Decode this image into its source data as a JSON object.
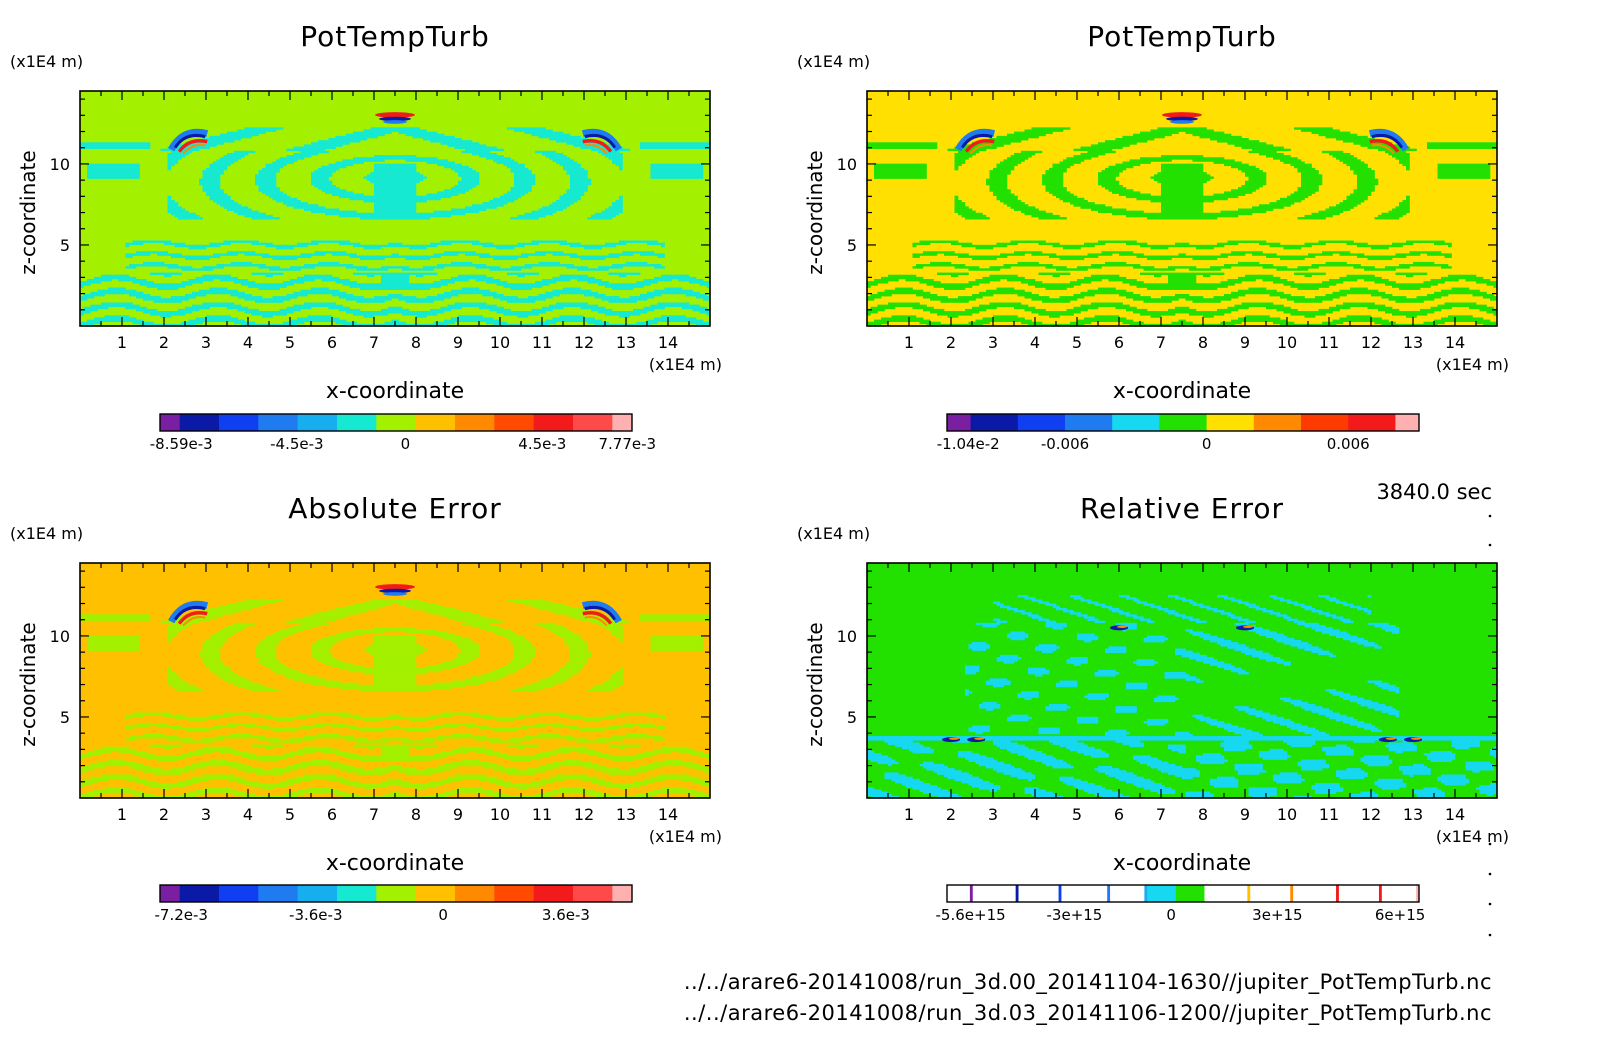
{
  "time_label": "3840.0 sec",
  "footer": {
    "line1": "../../arare6-20141008/run_3d.00_20141104-1630//jupiter_PotTempTurb.nc",
    "line2": "../../arare6-20141008/run_3d.03_20141106-1200//jupiter_PotTempTurb.nc"
  },
  "chart_data": [
    {
      "type": "heatmap",
      "title": "PotTempTurb",
      "xlabel": "x-coordinate",
      "ylabel": "z-coordinate",
      "x_unit": "(x1E4 m)",
      "y_unit": "(x1E4 m)",
      "xlim": [
        0,
        15
      ],
      "ylim": [
        0,
        14.5
      ],
      "x_ticks": [
        "1",
        "2",
        "3",
        "4",
        "5",
        "6",
        "7",
        "8",
        "9",
        "10",
        "11",
        "12",
        "13",
        "14"
      ],
      "y_ticks": [
        "5",
        "10"
      ],
      "field": "base",
      "colorbar": {
        "colors": [
          "#7a1fa2",
          "#0a1aa6",
          "#0f3ff0",
          "#1f7cf0",
          "#17aef0",
          "#16e9d2",
          "#a3f000",
          "#ffc000",
          "#ff8a00",
          "#ff4a00",
          "#f21a1a",
          "#ff4a4a",
          "#ffb0b0"
        ],
        "tick_labels": [
          "-8.59e-3",
          "-4.5e-3",
          "0",
          "4.5e-3",
          "7.77e-3"
        ]
      },
      "palette": {
        "background": "#a3f000",
        "stripe": "#16e9d2",
        "hot1": "#f21a1a",
        "hot2": "#ff8a00",
        "cold1": "#0a1aa6",
        "cold2": "#1f7cf0"
      }
    },
    {
      "type": "heatmap",
      "title": "PotTempTurb",
      "xlabel": "x-coordinate",
      "ylabel": "z-coordinate",
      "x_unit": "(x1E4 m)",
      "y_unit": "(x1E4 m)",
      "xlim": [
        0,
        15
      ],
      "ylim": [
        0,
        14.5
      ],
      "x_ticks": [
        "1",
        "2",
        "3",
        "4",
        "5",
        "6",
        "7",
        "8",
        "9",
        "10",
        "11",
        "12",
        "13",
        "14"
      ],
      "y_ticks": [
        "5",
        "10"
      ],
      "field": "base",
      "colorbar": {
        "colors": [
          "#7a1fa2",
          "#0a1aa6",
          "#0f3ff0",
          "#1f7cf0",
          "#16d8f0",
          "#22e000",
          "#ffe000",
          "#ff8a00",
          "#ff3a00",
          "#f21a1a",
          "#ffb0b0"
        ],
        "tick_labels": [
          "-1.04e-2",
          "-0.006",
          "0",
          "0.006"
        ]
      },
      "palette": {
        "background": "#ffe000",
        "stripe": "#22e000",
        "hot1": "#f21a1a",
        "hot2": "#ff8a00",
        "cold1": "#0a1aa6",
        "cold2": "#1f7cf0"
      }
    },
    {
      "type": "heatmap",
      "title": "Absolute Error",
      "xlabel": "x-coordinate",
      "ylabel": "z-coordinate",
      "x_unit": "(x1E4 m)",
      "y_unit": "(x1E4 m)",
      "xlim": [
        0,
        15
      ],
      "ylim": [
        0,
        14.5
      ],
      "x_ticks": [
        "1",
        "2",
        "3",
        "4",
        "5",
        "6",
        "7",
        "8",
        "9",
        "10",
        "11",
        "12",
        "13",
        "14"
      ],
      "y_ticks": [
        "5",
        "10"
      ],
      "field": "base",
      "colorbar": {
        "colors": [
          "#7a1fa2",
          "#0a1aa6",
          "#0f3ff0",
          "#1f7cf0",
          "#17aef0",
          "#16e9d2",
          "#a3f000",
          "#ffc000",
          "#ff8a00",
          "#ff4a00",
          "#f21a1a",
          "#ff4a4a",
          "#ffb0b0"
        ],
        "tick_labels": [
          "-7.2e-3",
          "-3.6e-3",
          "0",
          "3.6e-3"
        ]
      },
      "palette": {
        "background": "#ffc000",
        "stripe": "#a3f000",
        "hot1": "#f21a1a",
        "hot2": "#ff8a00",
        "cold1": "#0a1aa6",
        "cold2": "#1f7cf0"
      }
    },
    {
      "type": "heatmap",
      "title": "Relative Error",
      "xlabel": "x-coordinate",
      "ylabel": "z-coordinate",
      "x_unit": "(x1E4 m)",
      "y_unit": "(x1E4 m)",
      "xlim": [
        0,
        15
      ],
      "ylim": [
        0,
        14.5
      ],
      "x_ticks": [
        "1",
        "2",
        "3",
        "4",
        "5",
        "6",
        "7",
        "8",
        "9",
        "10",
        "11",
        "12",
        "13",
        "14"
      ],
      "y_ticks": [
        "5",
        "10"
      ],
      "field": "relerr",
      "colorbar": {
        "colors": [
          "#ffffff",
          "#7a1fa2",
          "#ffffff",
          "#0a1aa6",
          "#ffffff",
          "#0f3ff0",
          "#ffffff",
          "#1f7cf0",
          "#ffffff",
          "#17aef0",
          "#16d8f0",
          "#22e000",
          "#ffffff",
          "#ffc000",
          "#ffffff",
          "#ff8a00",
          "#ffffff",
          "#f21a1a",
          "#ffffff",
          "#f21a1a",
          "#ffffff",
          "#ffb0b0"
        ],
        "weights": [
          8,
          1,
          15,
          1,
          14,
          1,
          16,
          1,
          12,
          1,
          10,
          10,
          15,
          1,
          14,
          1,
          15,
          1,
          14,
          1,
          12,
          1
        ],
        "tick_labels": [
          "-5.6e+15",
          "-3e+15",
          "0",
          "3e+15",
          "6e+15"
        ]
      },
      "palette": {
        "background": "#22e000",
        "stripe": "#16d8f0",
        "hot1": "#f21a1a",
        "hot2": "#ff8a00",
        "cold1": "#0a1aa6",
        "cold2": "#1f7cf0"
      }
    }
  ]
}
